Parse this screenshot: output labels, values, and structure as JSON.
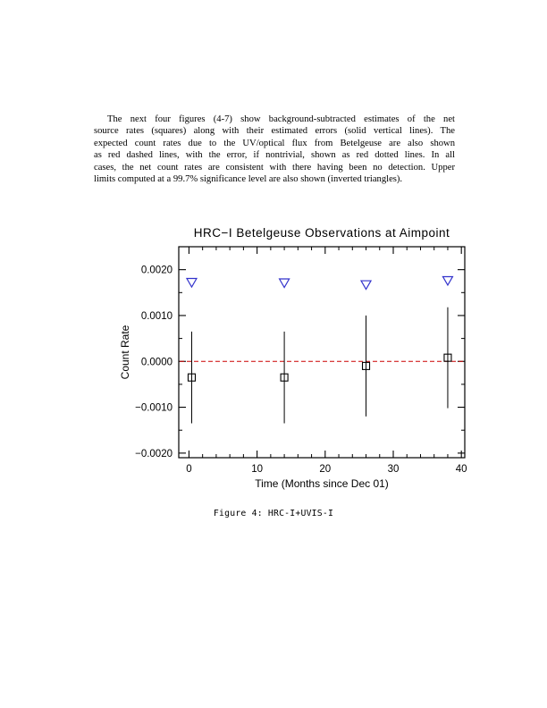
{
  "page": {
    "paragraph_lines": [
      "The next four figures (4-7) show background-subtracted estimates of the net",
      "source rates (squares) along with their estimated errors (solid vertical lines). The",
      "expected count rates due to the UV/optical flux from Betelgeuse are also shown",
      "as red dashed lines, with the error, if nontrivial, shown as red dotted lines. In all",
      "cases, the net count rates are consistent with there having been no detection. Upper",
      "limits computed at a 99.7% significance level are also shown (inverted triangles)."
    ],
    "figure_caption": "Figure 4:  HRC-I+UVIS-I"
  },
  "chart_data": {
    "type": "scatter",
    "title": "HRC−I Betelgeuse Observations at Aimpoint",
    "xlabel": "Time (Months since Dec 01)",
    "ylabel": "Count Rate",
    "xlim": [
      -1.5,
      40.5
    ],
    "ylim": [
      -0.0021,
      0.0025
    ],
    "x_ticks": [
      0,
      10,
      20,
      30,
      40
    ],
    "x_minor_step": 2,
    "y_ticks": [
      -0.002,
      -0.001,
      0,
      0.001,
      0.002
    ],
    "y_tick_labels": [
      "−0.0020",
      "−0.0010",
      "0.0000",
      "0.0010",
      "0.0020"
    ],
    "y_minor_step": 0.0005,
    "grid": false,
    "legend": false,
    "frame_color": "#000000",
    "reference_line": {
      "y": 0,
      "color": "#cc0000",
      "style": "dashed",
      "name": "expected count rate"
    },
    "series": [
      {
        "name": "net source rate",
        "marker": "open-square",
        "color": "#000000",
        "x": [
          0.4,
          14,
          26,
          38
        ],
        "y": [
          -0.00035,
          -0.00035,
          -0.0001,
          8e-05
        ],
        "yerr": [
          0.001,
          0.001,
          0.0011,
          0.0011
        ]
      },
      {
        "name": "99.7% upper limit",
        "marker": "open-inverted-triangle",
        "color": "#3333cc",
        "x": [
          0.4,
          14,
          26,
          38
        ],
        "y": [
          0.00172,
          0.00171,
          0.00167,
          0.00176
        ]
      }
    ]
  }
}
